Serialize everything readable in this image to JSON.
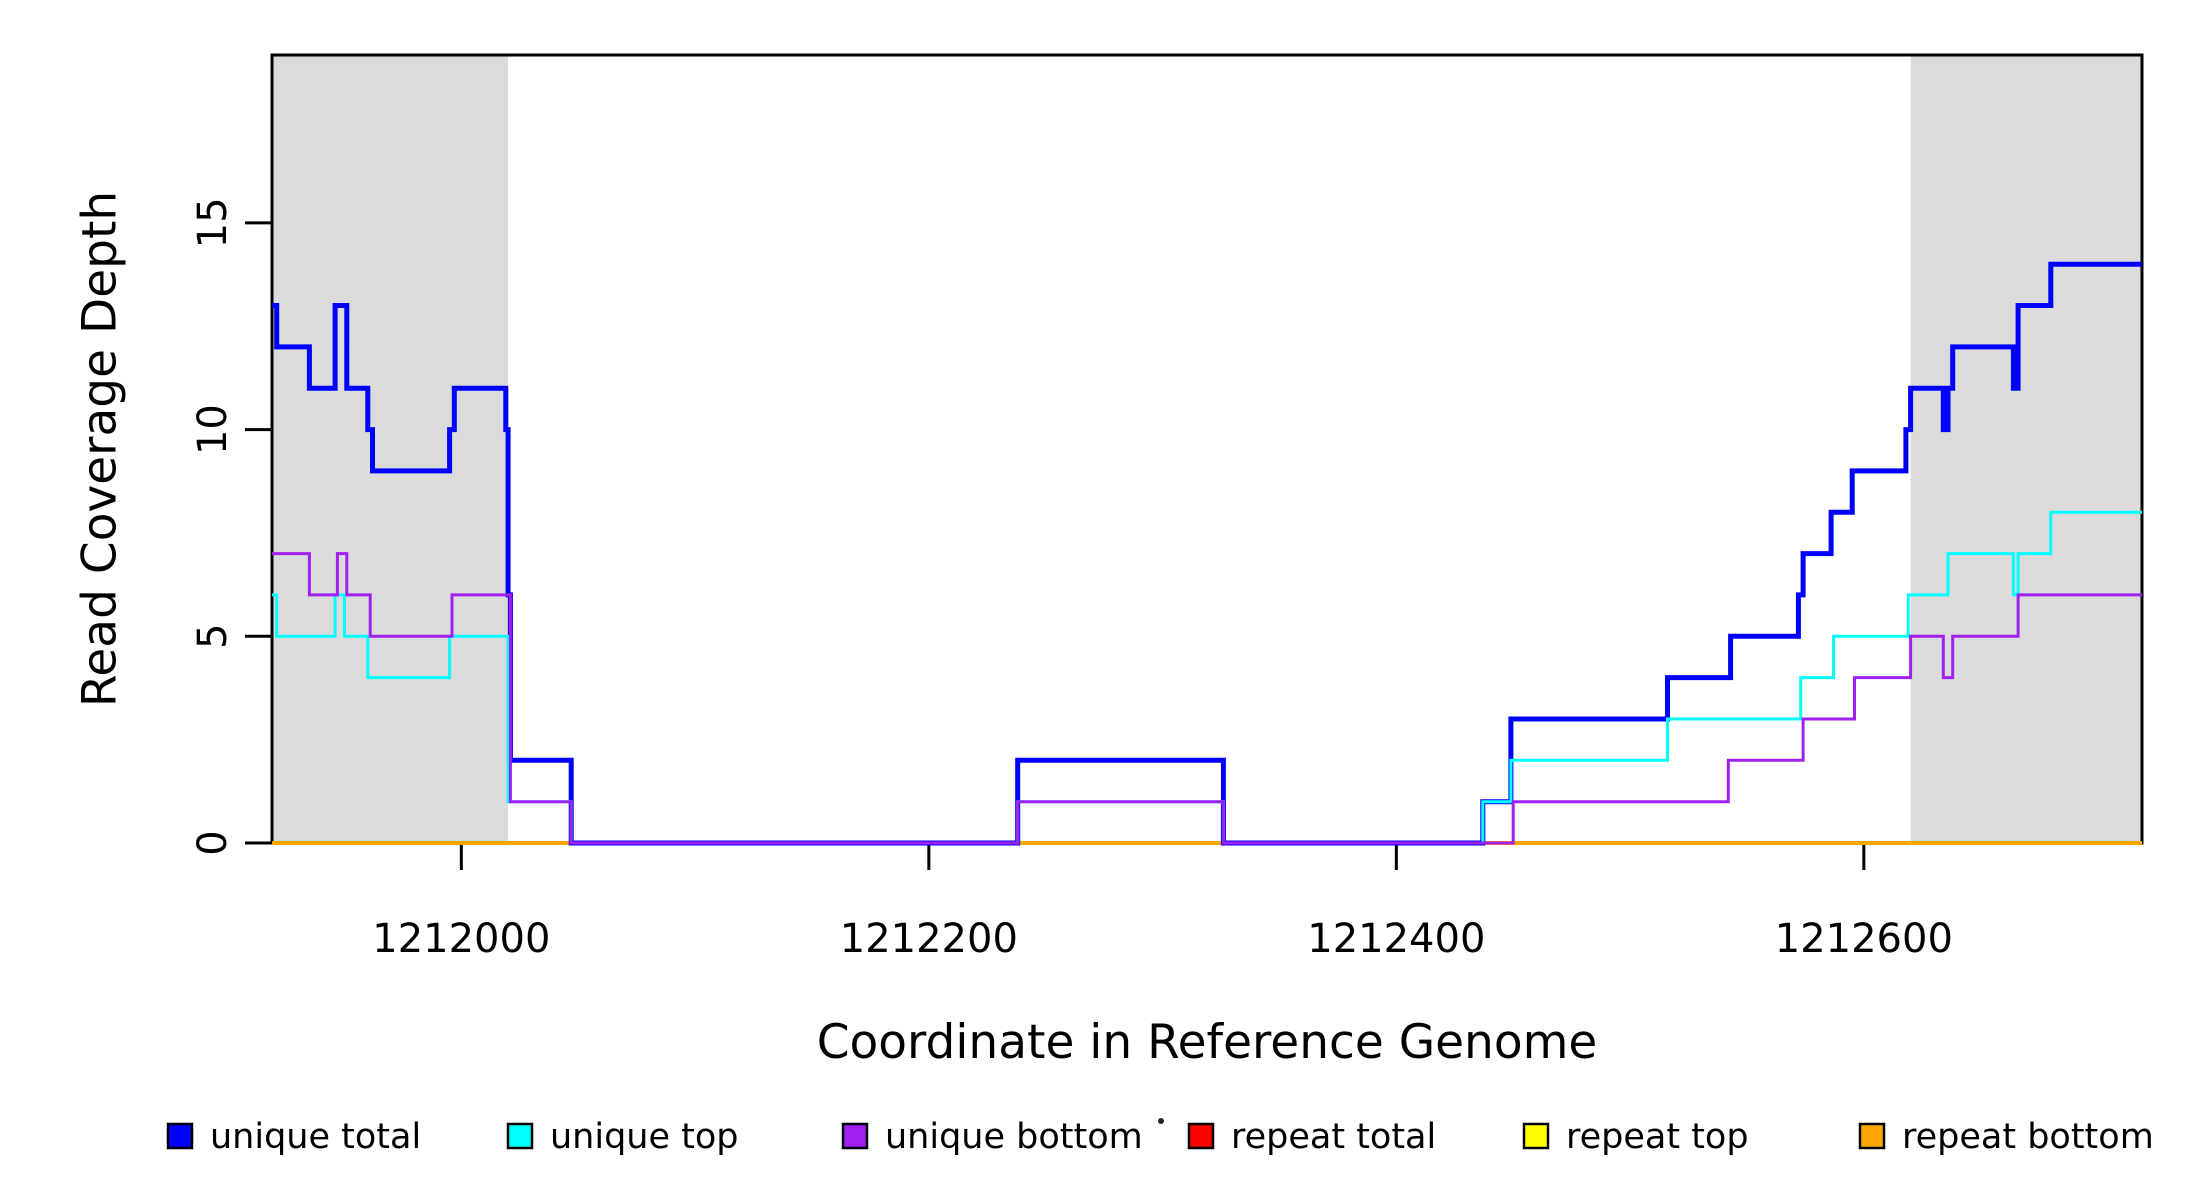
{
  "chart_data": {
    "type": "line",
    "step": true,
    "title": "",
    "xlabel": "Coordinate in Reference Genome",
    "ylabel": "Read Coverage Depth",
    "xlim": [
      1211919,
      1212719
    ],
    "ylim": [
      0,
      19.06
    ],
    "x_ticks": [
      1212000,
      1212200,
      1212400,
      1212600
    ],
    "y_ticks": [
      0,
      5,
      10,
      15
    ],
    "grid": false,
    "legend_position": "bottom",
    "background_color": "#ffffff",
    "shaded_region_color": "#DBDBDB",
    "shaded_regions": [
      {
        "name": "repeat-region-left",
        "x0": 1211919,
        "x1": 1212020
      },
      {
        "name": "repeat-region-right",
        "x0": 1212620,
        "x1": 1212719
      }
    ],
    "series": [
      {
        "name": "repeat total",
        "color": "#FF0000",
        "line_width": 3,
        "points": [
          [
            1211919,
            0
          ]
        ]
      },
      {
        "name": "repeat top",
        "color": "#FFFF00",
        "line_width": 3,
        "points": [
          [
            1211919,
            0
          ]
        ]
      },
      {
        "name": "repeat bottom",
        "color": "#FFA500",
        "line_width": 4,
        "points": [
          [
            1211919,
            0
          ]
        ]
      },
      {
        "name": "unique total",
        "color": "#0000FF",
        "line_width": 5,
        "points": [
          [
            1211919,
            13
          ],
          [
            1211921,
            12
          ],
          [
            1211935,
            11
          ],
          [
            1211946,
            13
          ],
          [
            1211951,
            11
          ],
          [
            1211960,
            10
          ],
          [
            1211962,
            9
          ],
          [
            1211995,
            10
          ],
          [
            1211997,
            11
          ],
          [
            1212019,
            10
          ],
          [
            1212020,
            6
          ],
          [
            1212021,
            2
          ],
          [
            1212047,
            0
          ],
          [
            1212238,
            2
          ],
          [
            1212326,
            0
          ],
          [
            1212437,
            1
          ],
          [
            1212449,
            3
          ],
          [
            1212516,
            4
          ],
          [
            1212543,
            5
          ],
          [
            1212572,
            6
          ],
          [
            1212574,
            7
          ],
          [
            1212586,
            8
          ],
          [
            1212595,
            9
          ],
          [
            1212618,
            10
          ],
          [
            1212620,
            11
          ],
          [
            1212634,
            10
          ],
          [
            1212636,
            11
          ],
          [
            1212638,
            12
          ],
          [
            1212664,
            11
          ],
          [
            1212666,
            13
          ],
          [
            1212680,
            14
          ]
        ]
      },
      {
        "name": "unique top",
        "color": "#00FFFF",
        "line_width": 3,
        "points": [
          [
            1211919,
            6
          ],
          [
            1211921,
            5
          ],
          [
            1211946,
            6
          ],
          [
            1211950,
            5
          ],
          [
            1211960,
            4
          ],
          [
            1211995,
            5
          ],
          [
            1212020,
            1
          ],
          [
            1212047,
            0
          ],
          [
            1212238,
            1
          ],
          [
            1212326,
            0
          ],
          [
            1212437,
            1
          ],
          [
            1212449,
            2
          ],
          [
            1212516,
            3
          ],
          [
            1212573,
            4
          ],
          [
            1212587,
            5
          ],
          [
            1212619,
            6
          ],
          [
            1212636,
            7
          ],
          [
            1212664,
            6
          ],
          [
            1212666,
            7
          ],
          [
            1212680,
            8
          ]
        ]
      },
      {
        "name": "unique bottom",
        "color": "#A020F0",
        "line_width": 3,
        "points": [
          [
            1211919,
            7
          ],
          [
            1211935,
            6
          ],
          [
            1211947,
            7
          ],
          [
            1211951,
            6
          ],
          [
            1211961,
            5
          ],
          [
            1211996,
            6
          ],
          [
            1212021,
            1
          ],
          [
            1212047,
            0
          ],
          [
            1212238,
            1
          ],
          [
            1212326,
            0
          ],
          [
            1212450,
            1
          ],
          [
            1212542,
            2
          ],
          [
            1212574,
            3
          ],
          [
            1212596,
            4
          ],
          [
            1212620,
            5
          ],
          [
            1212634,
            4
          ],
          [
            1212638,
            5
          ],
          [
            1212666,
            6
          ]
        ]
      }
    ],
    "legend": [
      {
        "label": "unique total",
        "color": "#0000FF"
      },
      {
        "label": "unique top",
        "color": "#00FFFF"
      },
      {
        "label": "unique bottom",
        "color": "#A020F0"
      },
      {
        "label": "repeat total",
        "color": "#FF0000"
      },
      {
        "label": "repeat top",
        "color": "#FFFF00"
      },
      {
        "label": "repeat bottom",
        "color": "#FFA500"
      }
    ]
  }
}
